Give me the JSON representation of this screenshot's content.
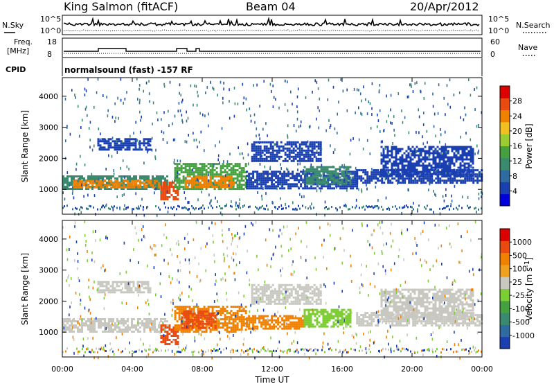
{
  "header": {
    "station": "King Salmon (fitACF)",
    "beam": "Beam 04",
    "date": "20/Apr/2012",
    "mode": "normalsound (fast) -157 RF"
  },
  "side_labels": {
    "nsky": "N.Sky",
    "freq": "Freq.",
    "freq_unit": "[MHz]",
    "cpid": "CPID",
    "nsearch": "N.Search",
    "nave": "Nave",
    "nsky_ticks": [
      "10^5",
      "10^0"
    ],
    "nsearch_ticks": [
      "10^5",
      "10^0"
    ],
    "freq_ticks": [
      "18",
      "8"
    ],
    "nave_ticks": [
      "60",
      "0"
    ]
  },
  "chart_data": [
    {
      "type": "heatmap",
      "panel": "power",
      "ylabel": "Slant Range [km]",
      "xlabel": "Time UT",
      "x_ticks": [
        "00:00",
        "04:00",
        "08:00",
        "12:00",
        "16:00",
        "20:00",
        "00:00"
      ],
      "y_ticks": [
        1000,
        2000,
        3000,
        4000
      ],
      "ylim": [
        200,
        4600
      ],
      "xlim_hours": [
        0,
        24
      ],
      "colorbar": {
        "label": "Power [dB]",
        "ticks": [
          "4",
          "8",
          "12",
          "16",
          "20",
          "24",
          "28"
        ],
        "colors": [
          "#0000dd",
          "#1a3fb0",
          "#2f6aa0",
          "#3c8a6e",
          "#45a040",
          "#9acd32",
          "#f0c020",
          "#f08000",
          "#e84a10",
          "#dd0000"
        ]
      },
      "bands": [
        {
          "t0": 0.0,
          "t1": 6.0,
          "r0": 1000,
          "r1": 1450,
          "color": "#3c8a6e"
        },
        {
          "t0": 0.6,
          "t1": 5.5,
          "r0": 1080,
          "r1": 1300,
          "color": "#f08000"
        },
        {
          "t0": 5.6,
          "t1": 6.6,
          "r0": 650,
          "r1": 1250,
          "color": "#e84a10"
        },
        {
          "t0": 6.4,
          "t1": 10.5,
          "r0": 1000,
          "r1": 1850,
          "color": "#45a040"
        },
        {
          "t0": 7.0,
          "t1": 9.8,
          "r0": 1050,
          "r1": 1450,
          "color": "#f08000"
        },
        {
          "t0": 10.5,
          "t1": 16.8,
          "r0": 1050,
          "r1": 1600,
          "color": "#1a3fb0"
        },
        {
          "t0": 13.8,
          "t1": 16.5,
          "r0": 1150,
          "r1": 1750,
          "color": "#3c8a6e"
        },
        {
          "t0": 16.8,
          "t1": 24.0,
          "r0": 1200,
          "r1": 1650,
          "color": "#1a3fb0"
        },
        {
          "t0": 2.0,
          "t1": 5.0,
          "r0": 2250,
          "r1": 2650,
          "color": "#1a3fb0"
        },
        {
          "t0": 10.8,
          "t1": 14.8,
          "r0": 1900,
          "r1": 2550,
          "color": "#1a3fb0"
        },
        {
          "t0": 18.2,
          "t1": 23.5,
          "r0": 1400,
          "r1": 2400,
          "color": "#1a3fb0"
        }
      ]
    },
    {
      "type": "heatmap",
      "panel": "velocity",
      "ylabel": "Slant Range [km]",
      "xlabel": "Time UT",
      "x_ticks": [
        "00:00",
        "04:00",
        "08:00",
        "12:00",
        "16:00",
        "20:00",
        "00:00"
      ],
      "y_ticks": [
        1000,
        2000,
        3000,
        4000
      ],
      "ylim": [
        200,
        4600
      ],
      "xlim_hours": [
        0,
        24
      ],
      "colorbar": {
        "label": "Velocity [m s",
        "label_sup": "-1",
        "label_end": "]",
        "ticks": [
          "1000",
          "500",
          "100",
          "25",
          "-25",
          "-100",
          "-500",
          "-1000"
        ],
        "colors": [
          "#1a3fb0",
          "#2f6aa0",
          "#3c8a6e",
          "#45a040",
          "#7ccd32",
          "#c8c8c0",
          "#f0a020",
          "#f08000",
          "#e84a10",
          "#dd0000"
        ]
      },
      "bands": [
        {
          "t0": 0.0,
          "t1": 6.0,
          "r0": 1000,
          "r1": 1450,
          "color": "#c8c8c0"
        },
        {
          "t0": 5.6,
          "t1": 6.6,
          "r0": 600,
          "r1": 1250,
          "color": "#e84a10"
        },
        {
          "t0": 6.4,
          "t1": 10.5,
          "r0": 1000,
          "r1": 1850,
          "color": "#f08000"
        },
        {
          "t0": 6.8,
          "t1": 8.8,
          "r0": 1100,
          "r1": 1700,
          "color": "#e84a10"
        },
        {
          "t0": 10.5,
          "t1": 13.8,
          "r0": 1100,
          "r1": 1550,
          "color": "#f08000"
        },
        {
          "t0": 13.8,
          "t1": 16.5,
          "r0": 1150,
          "r1": 1750,
          "color": "#7ccd32"
        },
        {
          "t0": 16.8,
          "t1": 24.0,
          "r0": 1200,
          "r1": 1650,
          "color": "#c8c8c0"
        },
        {
          "t0": 2.0,
          "t1": 5.0,
          "r0": 2250,
          "r1": 2650,
          "color": "#c8c8c0"
        },
        {
          "t0": 10.8,
          "t1": 14.8,
          "r0": 1900,
          "r1": 2550,
          "color": "#c8c8c0"
        },
        {
          "t0": 18.2,
          "t1": 23.5,
          "r0": 1400,
          "r1": 2400,
          "color": "#c8c8c0"
        }
      ]
    }
  ]
}
